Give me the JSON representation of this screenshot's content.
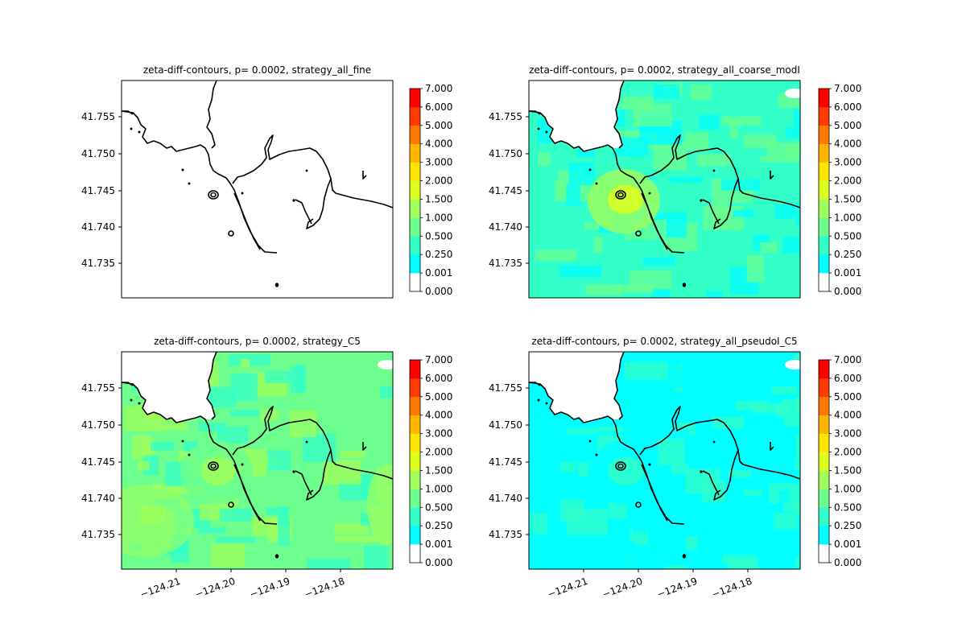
{
  "figure": {
    "colorbar_ticks": [
      "0.000",
      "0.001",
      "0.250",
      "0.500",
      "1.000",
      "1.500",
      "2.000",
      "3.000",
      "4.000",
      "5.000",
      "6.000",
      "7.000"
    ],
    "colorbar_colors": [
      "#ffffff",
      "#00ffff",
      "#33ffc8",
      "#6cff8e",
      "#a0ff5a",
      "#dcff20",
      "#ffe600",
      "#ffb400",
      "#ff7800",
      "#ff3c00",
      "#ff0000"
    ],
    "land_color": "#ffffff",
    "coast_color": "#000000"
  },
  "chart_data": [
    {
      "type": "heatmap",
      "title": "zeta-diff-contours, p= 0.0002, strategy_all_fine",
      "x_ticks": [],
      "y_ticks": [
        "41.735",
        "41.740",
        "41.745",
        "41.750",
        "41.755"
      ],
      "field_level": 0,
      "xlim": [
        -124.2205,
        -124.1705
      ],
      "ylim": [
        41.7305,
        41.7595
      ]
    },
    {
      "type": "heatmap",
      "title": "zeta-diff-contours, p= 0.0002, strategy_all_coarse_modI",
      "x_ticks": [],
      "y_ticks": [
        "41.735",
        "41.740",
        "41.745",
        "41.750",
        "41.755"
      ],
      "field_level": 2,
      "hotspot_level": 5,
      "xlim": [
        -124.2205,
        -124.1705
      ],
      "ylim": [
        41.7305,
        41.7595
      ]
    },
    {
      "type": "heatmap",
      "title": "zeta-diff-contours, p= 0.0002, strategy_C5",
      "x_ticks": [
        "−124.21",
        "−124.20",
        "−124.19",
        "−124.18"
      ],
      "y_ticks": [
        "41.735",
        "41.740",
        "41.745",
        "41.750",
        "41.755"
      ],
      "field_level": 3,
      "hotspot_level": 4,
      "xlim": [
        -124.2205,
        -124.1705
      ],
      "ylim": [
        41.7305,
        41.7595
      ]
    },
    {
      "type": "heatmap",
      "title": "zeta-diff-contours, p= 0.0002, strategy_all_pseudoI_C5",
      "x_ticks": [
        "−124.21",
        "−124.20",
        "−124.19",
        "−124.18"
      ],
      "y_ticks": [
        "41.735",
        "41.740",
        "41.745",
        "41.750",
        "41.755"
      ],
      "field_level": 1,
      "hotspot_level": 2,
      "xlim": [
        -124.2205,
        -124.1705
      ],
      "ylim": [
        41.7305,
        41.7595
      ]
    }
  ]
}
